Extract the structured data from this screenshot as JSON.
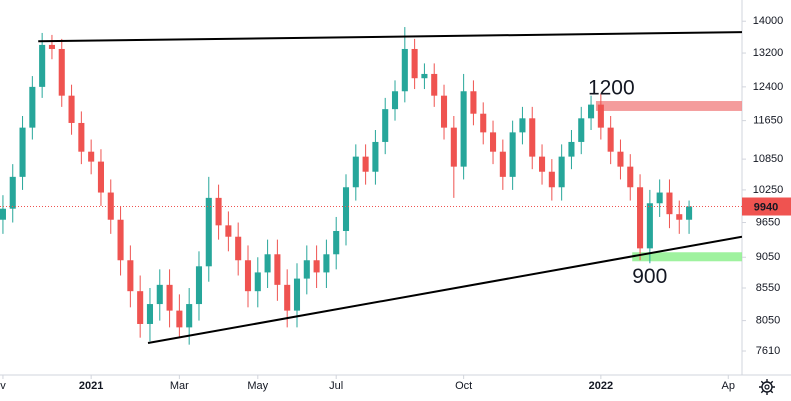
{
  "chart_data": {
    "type": "candlestick",
    "log_scale": true,
    "ylim": [
      7280,
      14560
    ],
    "yticks": [
      14000,
      13200,
      12400,
      11650,
      10850,
      10250,
      9650,
      9050,
      8550,
      8050,
      7610
    ],
    "xlim": [
      -0.3,
      75.4
    ],
    "xticks": [
      {
        "value": 0,
        "label": "v"
      },
      {
        "value": 9,
        "label": "2021"
      },
      {
        "value": 18,
        "label": "Mar"
      },
      {
        "value": 26,
        "label": "May"
      },
      {
        "value": 34,
        "label": "Jul"
      },
      {
        "value": 47,
        "label": "Oct"
      },
      {
        "value": 61,
        "label": "2022"
      },
      {
        "value": 74,
        "label": "Ap"
      }
    ],
    "up_color": "#26a69a",
    "down_color": "#ef5350",
    "open": [
      9700,
      9900,
      10500,
      11500,
      12400,
      13400,
      13300,
      12200,
      11600,
      11000,
      10800,
      10200,
      9700,
      9000,
      8500,
      8000,
      8300,
      8600,
      8200,
      7950,
      8300,
      8900,
      10100,
      9600,
      9400,
      9000,
      8500,
      8800,
      9100,
      8600,
      8200,
      8700,
      9000,
      8800,
      9100,
      9500,
      10300,
      10900,
      10600,
      11200,
      11900,
      12300,
      13300,
      12600,
      12700,
      12200,
      11500,
      10700,
      12300,
      11800,
      11400,
      11000,
      10500,
      11400,
      11700,
      10900,
      10600,
      10300,
      10900,
      11200,
      11700,
      12000,
      11500,
      11000,
      10700,
      10300,
      9200,
      10000,
      10200,
      9800,
      9700
    ],
    "high": [
      10150,
      10750,
      11750,
      12650,
      13700,
      13650,
      13550,
      12450,
      11850,
      11250,
      11050,
      10450,
      9950,
      9250,
      8750,
      8550,
      8850,
      8850,
      8450,
      8550,
      9150,
      10500,
      10350,
      9850,
      9650,
      9250,
      9050,
      9350,
      9350,
      8850,
      8950,
      9250,
      9250,
      9350,
      9750,
      10550,
      11150,
      11150,
      11450,
      12150,
      12550,
      13850,
      13550,
      12950,
      12950,
      12450,
      11750,
      12700,
      12550,
      12050,
      11650,
      11250,
      11650,
      11950,
      11950,
      11150,
      10850,
      11150,
      11450,
      11950,
      12200,
      12250,
      11750,
      11250,
      10950,
      10550,
      10250,
      10450,
      10450,
      10050,
      10050
    ],
    "low": [
      9450,
      9650,
      10250,
      11250,
      12150,
      13050,
      11950,
      11350,
      10750,
      10550,
      9950,
      9450,
      8750,
      8250,
      7800,
      7750,
      8050,
      7950,
      7800,
      7700,
      8050,
      8650,
      9350,
      9150,
      8750,
      8250,
      8250,
      8550,
      8350,
      7950,
      7950,
      8450,
      8550,
      8550,
      8850,
      9250,
      10050,
      10350,
      10350,
      10950,
      11650,
      12050,
      12350,
      12350,
      11950,
      11250,
      10100,
      10450,
      11550,
      11150,
      10750,
      10250,
      10250,
      11150,
      10650,
      10350,
      10050,
      10050,
      10650,
      10950,
      11450,
      11250,
      10750,
      10450,
      10050,
      9000,
      8950,
      9750,
      9550,
      9450,
      9450
    ],
    "close": [
      9900,
      10500,
      11500,
      12400,
      13400,
      13300,
      12200,
      11600,
      11000,
      10800,
      10200,
      9700,
      9000,
      8500,
      8000,
      8300,
      8600,
      8200,
      7950,
      8300,
      8900,
      10100,
      9600,
      9400,
      9000,
      8500,
      8800,
      9100,
      8600,
      8200,
      8700,
      9000,
      8800,
      9100,
      9500,
      10300,
      10900,
      10600,
      11200,
      11900,
      12300,
      13300,
      12600,
      12700,
      12200,
      11500,
      10700,
      12300,
      11800,
      11400,
      11000,
      10500,
      11400,
      11700,
      10900,
      10600,
      10300,
      10900,
      11200,
      11700,
      12000,
      11500,
      11000,
      10700,
      10300,
      9200,
      10000,
      10200,
      9800,
      9700,
      9940
    ],
    "last_price": 9940,
    "last_price_color": "#ef5350",
    "trendlines": [
      {
        "start": [
          3.6,
          13490
        ],
        "end": [
          75.4,
          13720
        ]
      },
      {
        "start": [
          14.8,
          7723
        ],
        "end": [
          75.4,
          9400
        ]
      }
    ],
    "zones": [
      {
        "label": "1200",
        "start": 60.5,
        "top": 12080,
        "bottom": 11860,
        "color": "#f28b8b"
      },
      {
        "label": "900",
        "start": 64.2,
        "top": 9134,
        "bottom": 8983,
        "color": "#8ef08e"
      }
    ]
  }
}
